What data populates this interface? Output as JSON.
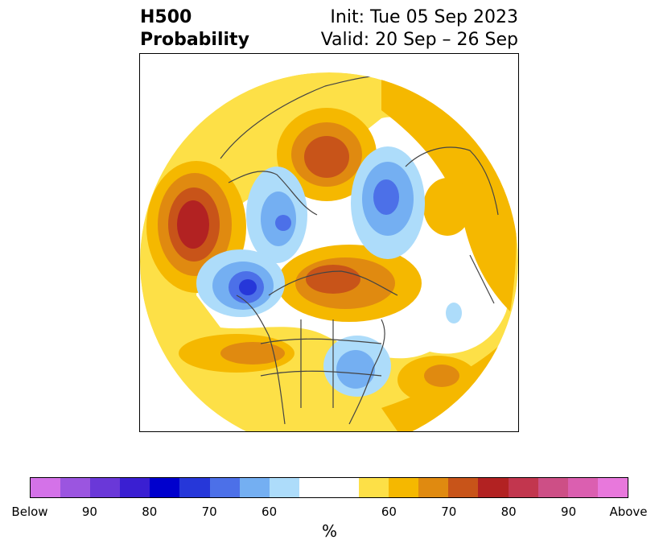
{
  "header": {
    "title_line1": "H500",
    "title_line2": "Probability",
    "init": "Init: Tue 05 Sep 2023",
    "valid": "Valid: 20 Sep – 26 Sep"
  },
  "colorbar": {
    "unit": "%",
    "colors": [
      "#d472e8",
      "#9b55e0",
      "#6a38d8",
      "#3a1fd2",
      "#0000cd",
      "#2637d9",
      "#4c70e8",
      "#74aff2",
      "#addcfa",
      "#ffffff",
      "#ffffff",
      "#fde047",
      "#f5b800",
      "#e08a10",
      "#c85419",
      "#b22222",
      "#c2364e",
      "#cd4f86",
      "#db5fb0",
      "#e878dc"
    ],
    "tick_labels": [
      "Below",
      "90",
      "80",
      "70",
      "60",
      "60",
      "70",
      "80",
      "90",
      "Above"
    ]
  },
  "map": {
    "palette": {
      "yellow": "#fde047",
      "gold": "#f5b800",
      "orange": "#e08a10",
      "darkorange": "#c85419",
      "red": "#b22222",
      "lightblue": "#addcfa",
      "skyblue": "#74aff2",
      "blue": "#4c70e8",
      "royalblue": "#2637d9",
      "coast": "#444444"
    }
  }
}
